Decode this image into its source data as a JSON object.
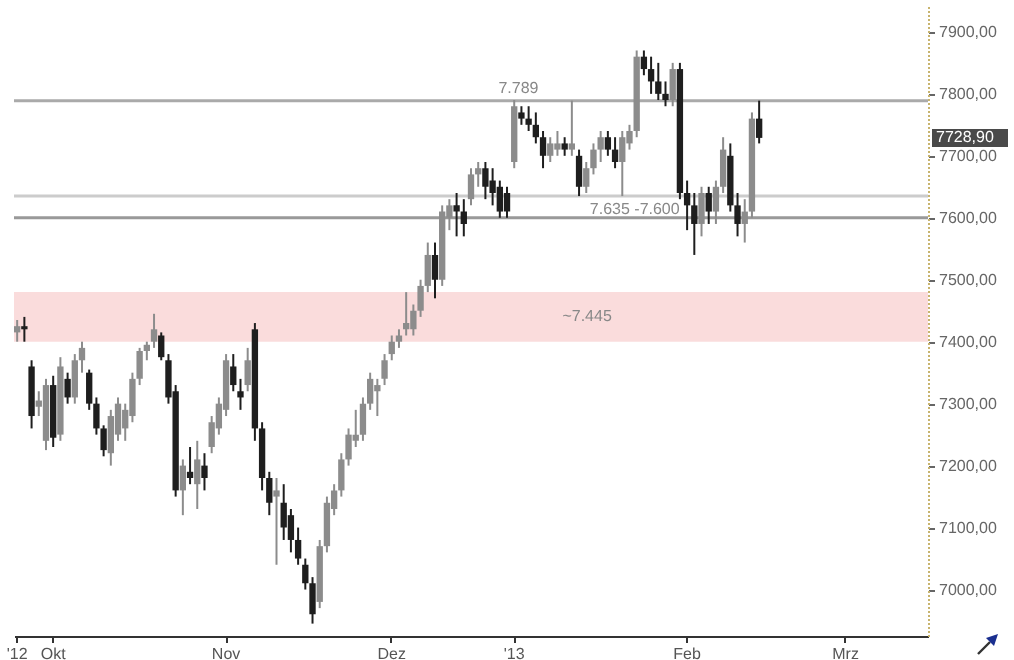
{
  "chart_data": {
    "type": "candlestick",
    "categories": [
      "'12",
      null,
      null,
      null,
      null,
      "Okt",
      null,
      null,
      null,
      null,
      null,
      null,
      null,
      null,
      null,
      null,
      null,
      null,
      null,
      null,
      null,
      null,
      null,
      null,
      null,
      null,
      null,
      null,
      null,
      "Nov",
      null,
      null,
      null,
      null,
      null,
      null,
      null,
      null,
      null,
      null,
      null,
      null,
      null,
      null,
      null,
      null,
      null,
      null,
      null,
      null,
      null,
      null,
      "Dez",
      null,
      null,
      null,
      null,
      null,
      null,
      null,
      null,
      null,
      null,
      null,
      null,
      null,
      null,
      null,
      null,
      "'13",
      null,
      null,
      null,
      null,
      null,
      null,
      null,
      null,
      null,
      null,
      null,
      null,
      null,
      null,
      null,
      null,
      null,
      null,
      null,
      null,
      null,
      null,
      null,
      "Feb",
      null,
      null,
      null,
      null,
      null,
      null,
      null,
      null,
      null,
      null,
      null,
      null,
      null,
      null,
      null,
      null,
      null,
      null,
      null,
      null,
      null,
      "Mrz",
      null,
      null,
      null,
      null,
      null,
      null,
      null,
      null,
      null,
      null,
      null
    ],
    "ohlc": [
      [
        7415,
        7435,
        7400,
        7425
      ],
      [
        7425,
        7440,
        7400,
        7420
      ],
      [
        7360,
        7370,
        7260,
        7280
      ],
      [
        7295,
        7320,
        7280,
        7305
      ],
      [
        7240,
        7340,
        7225,
        7330
      ],
      [
        7330,
        7345,
        7230,
        7245
      ],
      [
        7250,
        7375,
        7240,
        7360
      ],
      [
        7340,
        7350,
        7300,
        7310
      ],
      [
        7310,
        7380,
        7300,
        7370
      ],
      [
        7370,
        7400,
        7350,
        7390
      ],
      [
        7350,
        7355,
        7290,
        7300
      ],
      [
        7300,
        7310,
        7250,
        7260
      ],
      [
        7260,
        7265,
        7215,
        7225
      ],
      [
        7220,
        7290,
        7200,
        7280
      ],
      [
        7250,
        7310,
        7240,
        7300
      ],
      [
        7260,
        7300,
        7240,
        7290
      ],
      [
        7280,
        7350,
        7270,
        7340
      ],
      [
        7340,
        7390,
        7330,
        7385
      ],
      [
        7385,
        7400,
        7370,
        7395
      ],
      [
        7400,
        7445,
        7390,
        7420
      ],
      [
        7410,
        7415,
        7370,
        7375
      ],
      [
        7370,
        7380,
        7300,
        7310
      ],
      [
        7320,
        7330,
        7150,
        7160
      ],
      [
        7160,
        7210,
        7120,
        7200
      ],
      [
        7190,
        7230,
        7170,
        7180
      ],
      [
        7170,
        7240,
        7130,
        7210
      ],
      [
        7200,
        7220,
        7160,
        7180
      ],
      [
        7230,
        7280,
        7220,
        7270
      ],
      [
        7260,
        7310,
        7250,
        7300
      ],
      [
        7290,
        7380,
        7280,
        7370
      ],
      [
        7360,
        7380,
        7320,
        7330
      ],
      [
        7320,
        7340,
        7290,
        7310
      ],
      [
        7330,
        7390,
        7320,
        7370
      ],
      [
        7420,
        7430,
        7240,
        7260
      ],
      [
        7260,
        7270,
        7160,
        7180
      ],
      [
        7180,
        7190,
        7120,
        7140
      ],
      [
        7150,
        7180,
        7040,
        7160
      ],
      [
        7140,
        7170,
        7080,
        7100
      ],
      [
        7120,
        7130,
        7060,
        7080
      ],
      [
        7080,
        7100,
        7040,
        7050
      ],
      [
        7040,
        7050,
        7000,
        7010
      ],
      [
        7010,
        7020,
        6945,
        6960
      ],
      [
        6980,
        7080,
        6970,
        7070
      ],
      [
        7070,
        7150,
        7060,
        7140
      ],
      [
        7130,
        7170,
        7120,
        7160
      ],
      [
        7160,
        7220,
        7150,
        7210
      ],
      [
        7210,
        7260,
        7200,
        7250
      ],
      [
        7240,
        7290,
        7230,
        7250
      ],
      [
        7250,
        7310,
        7240,
        7300
      ],
      [
        7300,
        7350,
        7290,
        7340
      ],
      [
        7320,
        7340,
        7280,
        7330
      ],
      [
        7340,
        7380,
        7330,
        7370
      ],
      [
        7380,
        7410,
        7370,
        7400
      ],
      [
        7400,
        7420,
        7390,
        7410
      ],
      [
        7420,
        7480,
        7410,
        7430
      ],
      [
        7420,
        7460,
        7410,
        7450
      ],
      [
        7450,
        7500,
        7440,
        7490
      ],
      [
        7490,
        7560,
        7480,
        7540
      ],
      [
        7540,
        7560,
        7470,
        7500
      ],
      [
        7500,
        7620,
        7490,
        7610
      ],
      [
        7600,
        7630,
        7580,
        7620
      ],
      [
        7620,
        7640,
        7570,
        7610
      ],
      [
        7610,
        7630,
        7570,
        7590
      ],
      [
        7630,
        7680,
        7620,
        7670
      ],
      [
        7670,
        7690,
        7650,
        7680
      ],
      [
        7680,
        7690,
        7630,
        7650
      ],
      [
        7660,
        7680,
        7620,
        7640
      ],
      [
        7650,
        7660,
        7600,
        7610
      ],
      [
        7640,
        7650,
        7600,
        7610
      ],
      [
        7690,
        7790,
        7680,
        7780
      ],
      [
        7770,
        7780,
        7750,
        7760
      ],
      [
        7760,
        7780,
        7740,
        7750
      ],
      [
        7750,
        7770,
        7720,
        7730
      ],
      [
        7730,
        7740,
        7680,
        7700
      ],
      [
        7700,
        7730,
        7690,
        7720
      ],
      [
        7710,
        7740,
        7700,
        7720
      ],
      [
        7720,
        7730,
        7700,
        7710
      ],
      [
        7710,
        7789,
        7700,
        7720
      ],
      [
        7700,
        7710,
        7635,
        7650
      ],
      [
        7650,
        7690,
        7640,
        7680
      ],
      [
        7680,
        7720,
        7670,
        7710
      ],
      [
        7710,
        7740,
        7690,
        7730
      ],
      [
        7730,
        7740,
        7700,
        7710
      ],
      [
        7710,
        7730,
        7680,
        7690
      ],
      [
        7690,
        7740,
        7635,
        7730
      ],
      [
        7720,
        7750,
        7710,
        7740
      ],
      [
        7740,
        7870,
        7730,
        7860
      ],
      [
        7860,
        7870,
        7830,
        7840
      ],
      [
        7840,
        7860,
        7800,
        7820
      ],
      [
        7820,
        7850,
        7790,
        7800
      ],
      [
        7800,
        7820,
        7780,
        7790
      ],
      [
        7790,
        7850,
        7780,
        7840
      ],
      [
        7840,
        7850,
        7630,
        7640
      ],
      [
        7640,
        7660,
        7580,
        7620
      ],
      [
        7620,
        7640,
        7540,
        7590
      ],
      [
        7590,
        7650,
        7570,
        7640
      ],
      [
        7640,
        7650,
        7590,
        7610
      ],
      [
        7610,
        7660,
        7590,
        7650
      ],
      [
        7650,
        7730,
        7640,
        7710
      ],
      [
        7700,
        7720,
        7610,
        7620
      ],
      [
        7620,
        7640,
        7570,
        7590
      ],
      [
        7590,
        7630,
        7560,
        7610
      ],
      [
        7610,
        7770,
        7600,
        7760
      ],
      [
        7760,
        7789,
        7720,
        7728.9
      ],
      null,
      null,
      null,
      null,
      null,
      null,
      null,
      null,
      null,
      null,
      null,
      null,
      null,
      null,
      null,
      null,
      null,
      null,
      null,
      null,
      null,
      null,
      null
    ],
    "ylim": [
      6925,
      7945
    ],
    "yticks": [
      {
        "value": 7000,
        "label": "7000,00"
      },
      {
        "value": 7100,
        "label": "7100,00"
      },
      {
        "value": 7200,
        "label": "7200,00"
      },
      {
        "value": 7300,
        "label": "7300,00"
      },
      {
        "value": 7400,
        "label": "7400,00"
      },
      {
        "value": 7500,
        "label": "7500,00"
      },
      {
        "value": 7600,
        "label": "7600,00"
      },
      {
        "value": 7700,
        "label": "7700,00"
      },
      {
        "value": 7800,
        "label": "7800,00"
      },
      {
        "value": 7900,
        "label": "7900,00"
      }
    ],
    "ref_lines": [
      {
        "axis": "y",
        "value": 7789,
        "label": "7.789",
        "color": "#aaaaaa"
      },
      {
        "axis": "y",
        "value": 7635,
        "label": "7.635 -7.600",
        "color": "#cccccc"
      },
      {
        "axis": "y",
        "value": 7600,
        "color": "#999999"
      }
    ],
    "bands": [
      {
        "axis": "y",
        "from": 7400,
        "to": 7480,
        "label": "~7.445",
        "color": "#fadcdc"
      }
    ],
    "annotations": [
      "7728,90"
    ],
    "grid": false
  }
}
